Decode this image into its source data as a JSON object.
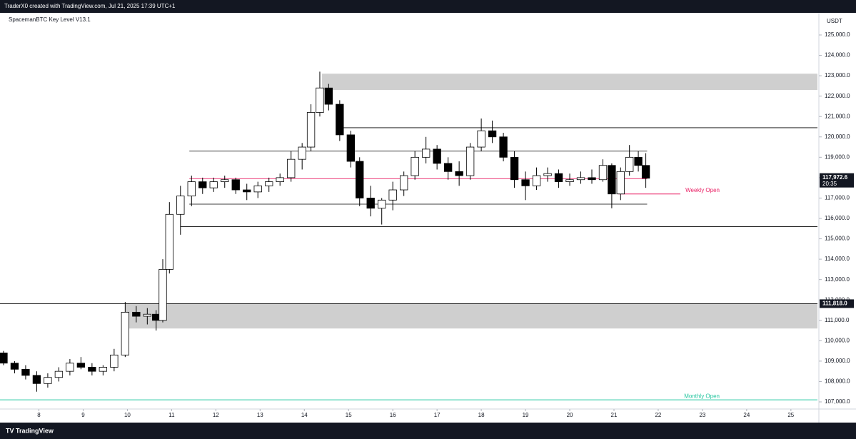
{
  "header": {
    "text": "TraderX0 created with TradingView.com, Jul 21, 2025 17:39 UTC+1"
  },
  "footer": {
    "brand": "TradingView"
  },
  "chart_data": {
    "type": "candlestick",
    "title": "SpacemanBTC Key Level V13.1",
    "currency": "USDT",
    "up_color": "#ffffff",
    "down_color": "#000000",
    "border_color": "#000000",
    "x": [
      7.2,
      7.45,
      7.7,
      7.95,
      8.2,
      8.45,
      8.7,
      8.95,
      9.2,
      9.45,
      9.7,
      9.95,
      10.2,
      10.45,
      10.65,
      10.8,
      10.95,
      11.2,
      11.45,
      11.7,
      11.95,
      12.2,
      12.45,
      12.7,
      12.95,
      13.2,
      13.45,
      13.7,
      13.95,
      14.15,
      14.35,
      14.55,
      14.8,
      15.05,
      15.25,
      15.5,
      15.75,
      16.0,
      16.25,
      16.5,
      16.75,
      17.0,
      17.25,
      17.5,
      17.75,
      18.0,
      18.25,
      18.5,
      18.75,
      19.0,
      19.25,
      19.5,
      19.75,
      20.0,
      20.25,
      20.5,
      20.75,
      20.95,
      21.15,
      21.35,
      21.55,
      21.72
    ],
    "open": [
      109400,
      108900,
      108600,
      108300,
      107900,
      108200,
      108500,
      108900,
      108700,
      108500,
      108700,
      109300,
      111400,
      111200,
      111300,
      111000,
      113500,
      116200,
      117100,
      117800,
      117500,
      117800,
      117900,
      117400,
      117300,
      117600,
      117800,
      118000,
      118900,
      119500,
      121200,
      122400,
      121600,
      120100,
      118800,
      117000,
      116500,
      116900,
      117400,
      118100,
      119000,
      119400,
      118700,
      118300,
      118100,
      119500,
      120300,
      120000,
      119000,
      117900,
      117600,
      118100,
      118200,
      117800,
      117900,
      118000,
      117900,
      118600,
      117200,
      118300,
      119000,
      118600
    ],
    "high": [
      109500,
      109000,
      108800,
      108500,
      108400,
      108700,
      109100,
      109200,
      108900,
      108800,
      109600,
      111900,
      111700,
      111600,
      111500,
      114000,
      116800,
      117600,
      118100,
      118000,
      118000,
      118100,
      118000,
      117700,
      117800,
      118000,
      118200,
      119300,
      119700,
      121600,
      123200,
      122600,
      121800,
      120300,
      119000,
      117600,
      117000,
      117800,
      118300,
      119300,
      120000,
      119600,
      119000,
      118800,
      119700,
      120900,
      120800,
      120200,
      119300,
      118300,
      118500,
      118500,
      118400,
      118200,
      118300,
      118400,
      118900,
      118700,
      118500,
      119600,
      119300,
      119200
    ],
    "low": [
      108800,
      108400,
      108100,
      107500,
      107700,
      108000,
      108300,
      108600,
      108300,
      108300,
      108500,
      109200,
      110900,
      110800,
      110500,
      110900,
      113300,
      115200,
      116600,
      117200,
      117300,
      117500,
      117200,
      116900,
      117000,
      117300,
      117600,
      117800,
      118400,
      119300,
      121000,
      121300,
      119800,
      118500,
      116600,
      116100,
      115700,
      116400,
      117100,
      117900,
      118700,
      118400,
      117900,
      117600,
      117900,
      119300,
      119700,
      118800,
      117500,
      116900,
      117400,
      117800,
      117500,
      117600,
      117700,
      117700,
      117800,
      116500,
      116900,
      118100,
      118300,
      117500
    ],
    "close": [
      108900,
      108600,
      108300,
      107900,
      108200,
      108500,
      108900,
      108700,
      108500,
      108700,
      109300,
      111400,
      111200,
      111300,
      111000,
      113500,
      116200,
      117100,
      117800,
      117500,
      117800,
      117900,
      117400,
      117300,
      117600,
      117800,
      118000,
      118900,
      119500,
      121200,
      122400,
      121600,
      120100,
      118800,
      117000,
      116500,
      116900,
      117400,
      118100,
      119000,
      119400,
      118700,
      118300,
      118100,
      119500,
      120300,
      120000,
      119000,
      117900,
      117600,
      118100,
      118200,
      117800,
      117900,
      118000,
      117900,
      118600,
      117200,
      118300,
      119000,
      118600,
      117972.6
    ],
    "last_price": {
      "value": 117972.6,
      "label": "117,972.6",
      "countdown": "20:35"
    },
    "ylim": [
      106650,
      126085
    ],
    "yticks": [
      {
        "value": 107000,
        "label": "107,000.0"
      },
      {
        "value": 108000,
        "label": "108,000.0"
      },
      {
        "value": 109000,
        "label": "109,000.0"
      },
      {
        "value": 110000,
        "label": "110,000.0"
      },
      {
        "value": 111000,
        "label": "111,000.0"
      },
      {
        "value": 112000,
        "label": "112,000.0"
      },
      {
        "value": 113000,
        "label": "113,000.0"
      },
      {
        "value": 114000,
        "label": "114,000.0"
      },
      {
        "value": 115000,
        "label": "115,000.0"
      },
      {
        "value": 116000,
        "label": "116,000.0"
      },
      {
        "value": 117000,
        "label": "117,000.0"
      },
      {
        "value": 118000,
        "label": "118,000.0"
      },
      {
        "value": 119000,
        "label": "119,000.0"
      },
      {
        "value": 120000,
        "label": "120,000.0"
      },
      {
        "value": 121000,
        "label": "121,000.0"
      },
      {
        "value": 122000,
        "label": "122,000.0"
      },
      {
        "value": 123000,
        "label": "123,000.0"
      },
      {
        "value": 124000,
        "label": "124,000.0"
      },
      {
        "value": 125000,
        "label": "125,000.0"
      }
    ],
    "xlim": [
      7.12,
      25.6
    ],
    "xticks": [
      8,
      9,
      10,
      11,
      12,
      13,
      14,
      15,
      16,
      17,
      18,
      19,
      20,
      21,
      22,
      23,
      24,
      25
    ],
    "zones": [
      {
        "low": 122300,
        "high": 123100,
        "from": 14.4,
        "to": 25.6,
        "color": "#cfcfcf"
      },
      {
        "low": 110600,
        "high": 111818,
        "from": 9.95,
        "to": 25.6,
        "color": "#cfcfcf"
      }
    ],
    "levels": [
      {
        "value": 120450,
        "from": 14.8,
        "to": 25.6,
        "color": "#000000"
      },
      {
        "value": 119300,
        "from": 11.4,
        "to": 21.75,
        "color": "#000000"
      },
      {
        "value": 117950,
        "from": 11.4,
        "to": 21.75,
        "color": "#e91e63"
      },
      {
        "value": 116700,
        "from": 11.4,
        "to": 21.75,
        "color": "#000000"
      },
      {
        "value": 115600,
        "from": 11.2,
        "to": 25.6,
        "color": "#000000"
      },
      {
        "value": 111818,
        "from": 7.12,
        "to": 25.6,
        "color": "#000000",
        "label": "111,818.0"
      }
    ],
    "annotations": [
      {
        "text": "Weekly Open",
        "value": 117200,
        "from": 21.1,
        "to": 22.5,
        "color": "#e91e63"
      },
      {
        "text": "Monthly Open",
        "value": 107100,
        "from": 7.12,
        "to": 25.6,
        "color": "#26c6a0"
      }
    ]
  }
}
